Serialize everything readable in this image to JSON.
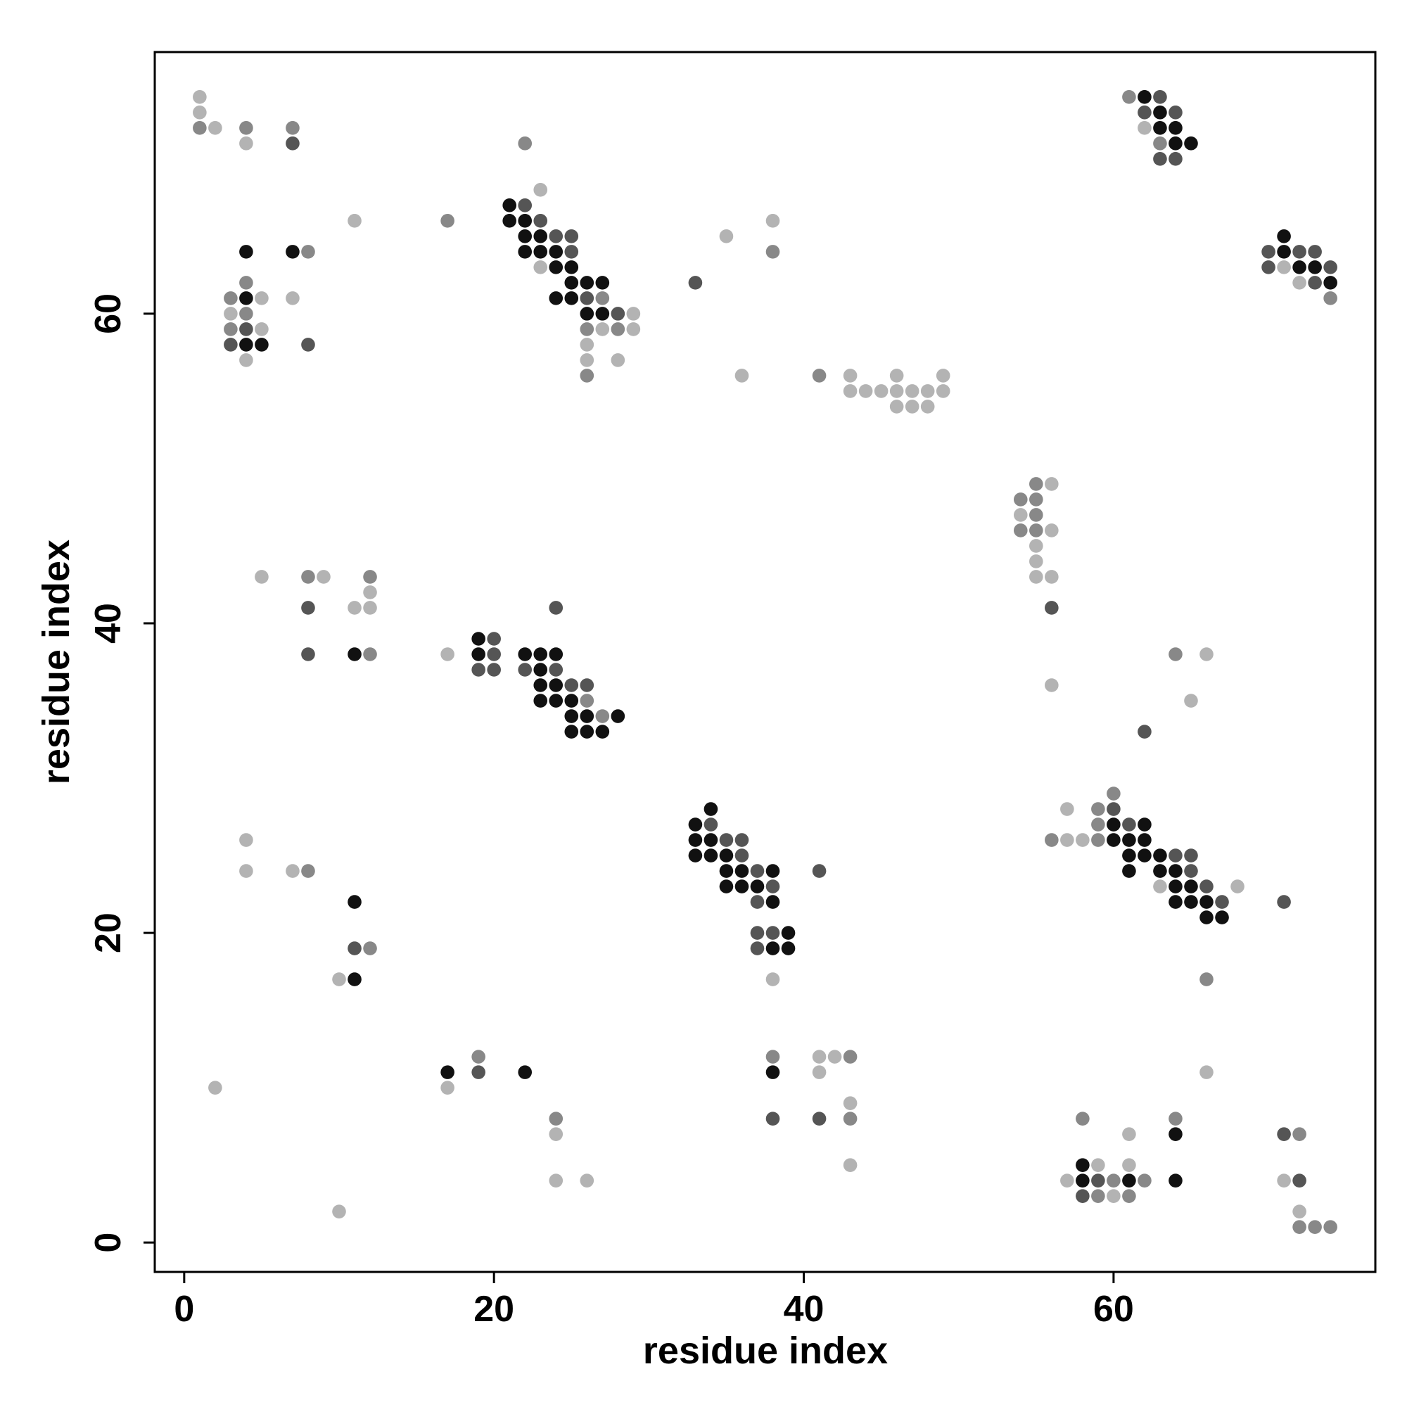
{
  "chart_data": {
    "type": "scatter",
    "x_label": "residue index",
    "y_label": "residue index",
    "xlim": [
      -1.9,
      76.9
    ],
    "ylim": [
      -1.9,
      76.9
    ],
    "xticks": [
      0,
      20,
      40,
      60
    ],
    "yticks": [
      0,
      20,
      40,
      60
    ],
    "series": [
      {
        "color": "#b3b3b3",
        "x": [
          1,
          1,
          2,
          4,
          11,
          5,
          7,
          3,
          5,
          4,
          23,
          23,
          29,
          27,
          29,
          26,
          26,
          28,
          35,
          38,
          36,
          43,
          43,
          44,
          45,
          46,
          46,
          46,
          47,
          47,
          48,
          48,
          49,
          49,
          62,
          71,
          72,
          56,
          54,
          56,
          55,
          55,
          55,
          56,
          56,
          5,
          9,
          12,
          11,
          12,
          17,
          66,
          65,
          57,
          57,
          58,
          63,
          68,
          38,
          4,
          4,
          7,
          10,
          2,
          17,
          24,
          24,
          26,
          10,
          41,
          42,
          41,
          43,
          43,
          66,
          61,
          59,
          61,
          57,
          60,
          71,
          72
        ],
        "y": [
          74,
          73,
          72,
          71,
          66,
          61,
          61,
          60,
          59,
          57,
          68,
          63,
          60,
          59,
          59,
          58,
          57,
          57,
          65,
          66,
          56,
          56,
          55,
          55,
          55,
          56,
          55,
          54,
          55,
          54,
          55,
          54,
          56,
          55,
          72,
          63,
          62,
          49,
          47,
          46,
          45,
          44,
          43,
          43,
          36,
          43,
          43,
          42,
          41,
          41,
          38,
          38,
          35,
          28,
          26,
          26,
          23,
          23,
          17,
          26,
          24,
          24,
          17,
          10,
          10,
          7,
          4,
          4,
          2,
          12,
          12,
          11,
          9,
          5,
          11,
          7,
          5,
          5,
          4,
          3,
          4,
          2
        ]
      },
      {
        "color": "#888888",
        "x": [
          1,
          4,
          7,
          17,
          8,
          4,
          3,
          4,
          3,
          22,
          27,
          26,
          28,
          26,
          38,
          41,
          61,
          63,
          74,
          55,
          54,
          55,
          55,
          54,
          55,
          8,
          12,
          12,
          26,
          27,
          64,
          60,
          59,
          59,
          56,
          59,
          8,
          12,
          19,
          24,
          38,
          43,
          43,
          66,
          58,
          64,
          60,
          62,
          59,
          61,
          72,
          72,
          73,
          74
        ],
        "y": [
          72,
          72,
          72,
          66,
          64,
          62,
          61,
          60,
          59,
          71,
          61,
          59,
          59,
          56,
          64,
          56,
          74,
          71,
          61,
          49,
          48,
          48,
          47,
          46,
          46,
          43,
          43,
          38,
          35,
          34,
          38,
          29,
          28,
          27,
          26,
          26,
          24,
          19,
          12,
          8,
          12,
          12,
          8,
          17,
          8,
          8,
          4,
          4,
          3,
          3,
          7,
          1,
          1,
          1
        ]
      },
      {
        "color": "#555555",
        "x": [
          7,
          4,
          3,
          8,
          22,
          23,
          24,
          25,
          25,
          26,
          28,
          33,
          63,
          62,
          64,
          63,
          64,
          70,
          72,
          73,
          70,
          74,
          73,
          56,
          8,
          8,
          20,
          20,
          19,
          20,
          22,
          24,
          24,
          25,
          26,
          62,
          60,
          61,
          64,
          65,
          65,
          66,
          67,
          71,
          34,
          35,
          36,
          36,
          37,
          41,
          38,
          37,
          37,
          38,
          37,
          11,
          19,
          38,
          41,
          59,
          58,
          71,
          72
        ],
        "y": [
          71,
          59,
          58,
          58,
          67,
          66,
          65,
          65,
          64,
          61,
          60,
          62,
          74,
          73,
          73,
          70,
          70,
          64,
          64,
          64,
          63,
          63,
          62,
          41,
          41,
          38,
          39,
          38,
          37,
          37,
          37,
          37,
          41,
          36,
          36,
          33,
          28,
          27,
          25,
          25,
          24,
          23,
          22,
          22,
          27,
          26,
          26,
          25,
          24,
          24,
          23,
          22,
          20,
          20,
          19,
          19,
          11,
          8,
          8,
          4,
          3,
          7,
          4
        ]
      },
      {
        "color": "#111111",
        "x": [
          4,
          7,
          4,
          4,
          5,
          21,
          21,
          22,
          22,
          23,
          22,
          23,
          24,
          24,
          25,
          25,
          26,
          27,
          24,
          25,
          26,
          27,
          62,
          63,
          63,
          64,
          64,
          65,
          71,
          71,
          72,
          73,
          74,
          11,
          19,
          19,
          22,
          23,
          24,
          23,
          23,
          24,
          23,
          24,
          25,
          25,
          26,
          28,
          25,
          26,
          27,
          60,
          62,
          60,
          61,
          62,
          61,
          62,
          63,
          61,
          63,
          64,
          64,
          65,
          64,
          65,
          66,
          66,
          67,
          34,
          33,
          33,
          34,
          33,
          34,
          35,
          35,
          36,
          38,
          35,
          36,
          37,
          38,
          39,
          38,
          39,
          11,
          11,
          17,
          22,
          38,
          64,
          58,
          58,
          61,
          64
        ],
        "y": [
          64,
          64,
          61,
          58,
          58,
          67,
          66,
          66,
          65,
          65,
          64,
          64,
          64,
          63,
          63,
          62,
          62,
          62,
          61,
          61,
          60,
          60,
          74,
          73,
          72,
          72,
          71,
          71,
          65,
          64,
          63,
          63,
          62,
          38,
          39,
          38,
          38,
          38,
          38,
          37,
          36,
          36,
          35,
          35,
          35,
          34,
          34,
          34,
          33,
          33,
          33,
          27,
          27,
          26,
          26,
          26,
          25,
          25,
          25,
          24,
          24,
          24,
          23,
          23,
          22,
          22,
          22,
          21,
          21,
          28,
          27,
          26,
          26,
          25,
          25,
          25,
          24,
          24,
          24,
          23,
          23,
          23,
          22,
          20,
          19,
          19,
          22,
          17,
          11,
          11,
          11,
          7,
          5,
          4,
          4,
          4
        ]
      }
    ]
  }
}
